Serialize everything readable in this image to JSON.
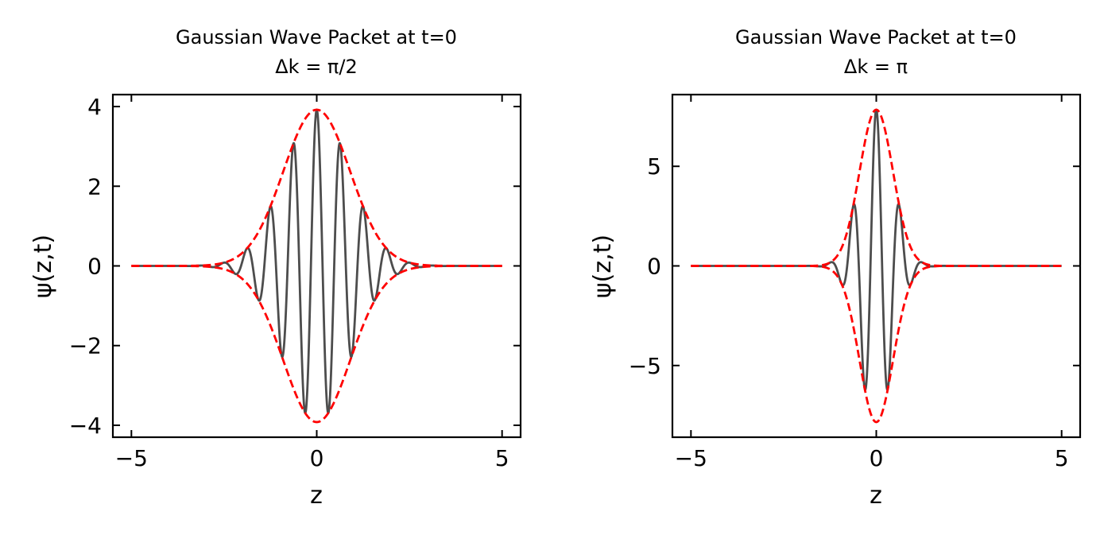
{
  "chart_data": [
    {
      "type": "line",
      "title": "Gaussian Wave Packet at t=0",
      "subtitle": "Δk = π/2",
      "xlabel": "z",
      "ylabel": "ψ(z,t)",
      "xlim": [
        -5.5,
        5.5
      ],
      "ylim": [
        -4.3,
        4.3
      ],
      "xticks": [
        -5,
        0,
        5
      ],
      "xtick_labels": [
        "−5",
        "0",
        "5"
      ],
      "yticks": [
        -4,
        -2,
        0,
        2,
        4
      ],
      "ytick_labels": [
        "−4",
        "−2",
        "0",
        "2",
        "4"
      ],
      "grid": false,
      "series": [
        {
          "style": "solid",
          "color": "#4d4d4d",
          "formula": "A*exp(-z^2*dk^2/4)*cos(k0*z)",
          "A": 3.92,
          "dk": 1.5708,
          "k0": 10.0,
          "x_range": [
            -5,
            5
          ]
        },
        {
          "style": "dashed",
          "color": "#ff0000",
          "formula": "+/- A*exp(-z^2*dk^2/4)",
          "A": 3.92,
          "dk": 1.5708,
          "x_range": [
            -5,
            5
          ]
        }
      ]
    },
    {
      "type": "line",
      "title": "Gaussian Wave Packet at t=0",
      "subtitle": "Δk = π",
      "xlabel": "z",
      "ylabel": "ψ(z,t)",
      "xlim": [
        -5.5,
        5.5
      ],
      "ylim": [
        -8.6,
        8.6
      ],
      "xticks": [
        -5,
        0,
        5
      ],
      "xtick_labels": [
        "−5",
        "0",
        "5"
      ],
      "yticks": [
        -5,
        0,
        5
      ],
      "ytick_labels": [
        "−5",
        "0",
        "5"
      ],
      "grid": false,
      "series": [
        {
          "style": "solid",
          "color": "#4d4d4d",
          "formula": "A*exp(-z^2*dk^2/4)*cos(k0*z)",
          "A": 7.84,
          "dk": 3.1416,
          "k0": 10.0,
          "x_range": [
            -5,
            5
          ]
        },
        {
          "style": "dashed",
          "color": "#ff0000",
          "formula": "+/- A*exp(-z^2*dk^2/4)",
          "A": 7.84,
          "dk": 3.1416,
          "x_range": [
            -5,
            5
          ]
        }
      ]
    }
  ]
}
